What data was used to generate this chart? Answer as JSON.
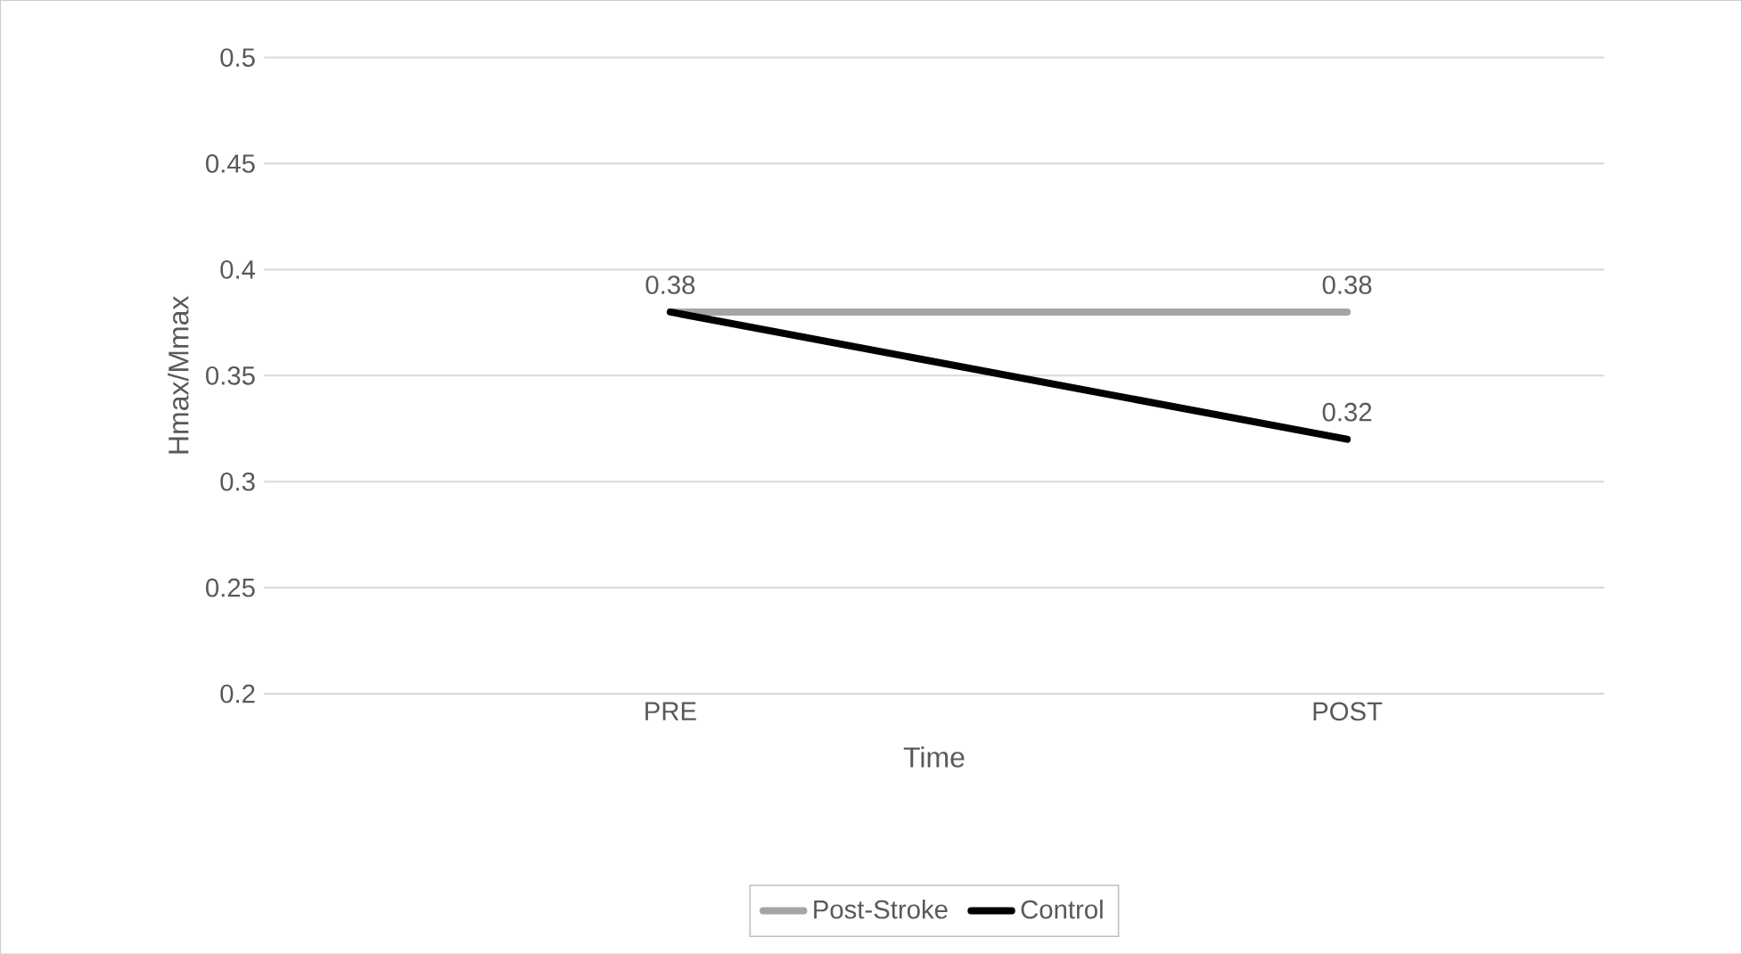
{
  "chart_data": {
    "type": "line",
    "xlabel": "Time",
    "ylabel": "Hmax/Mmax",
    "categories": [
      "PRE",
      "POST"
    ],
    "series": [
      {
        "name": "Post-Stroke",
        "color": "#a5a5a5",
        "values": [
          0.38,
          0.38
        ],
        "value_labels": [
          "0.38",
          "0.38"
        ]
      },
      {
        "name": "Control",
        "color": "#000000",
        "values": [
          0.38,
          0.32
        ],
        "value_labels": [
          null,
          "0.32"
        ]
      }
    ],
    "ylim": [
      0.2,
      0.5
    ],
    "yticks": [
      0.2,
      0.25,
      0.3,
      0.35,
      0.4,
      0.45,
      0.5
    ],
    "grid": "y",
    "legend": "bottom",
    "marker": "none",
    "line_style": "solid"
  }
}
